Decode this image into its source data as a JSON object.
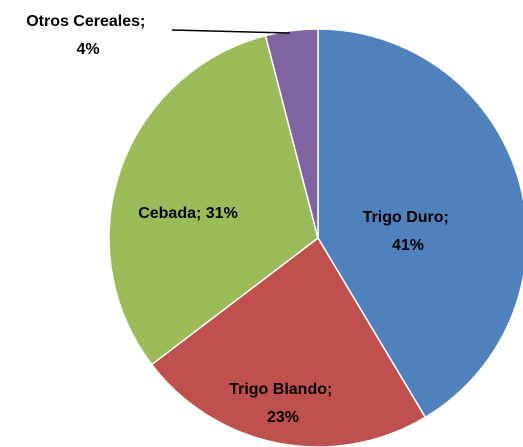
{
  "chart_data": {
    "type": "pie",
    "categories": [
      "Trigo Duro",
      "Trigo Blando",
      "Cebada",
      "Otros Cereales"
    ],
    "values": [
      41,
      23,
      31,
      4
    ],
    "value_labels": [
      "Trigo Duro; 41%",
      "Trigo Blando; 23%",
      "Cebada; 31%",
      "Otros Cereales; 4%"
    ],
    "colors": [
      "#4f81bd",
      "#c0504d",
      "#9bbb59",
      "#8064a2"
    ]
  }
}
